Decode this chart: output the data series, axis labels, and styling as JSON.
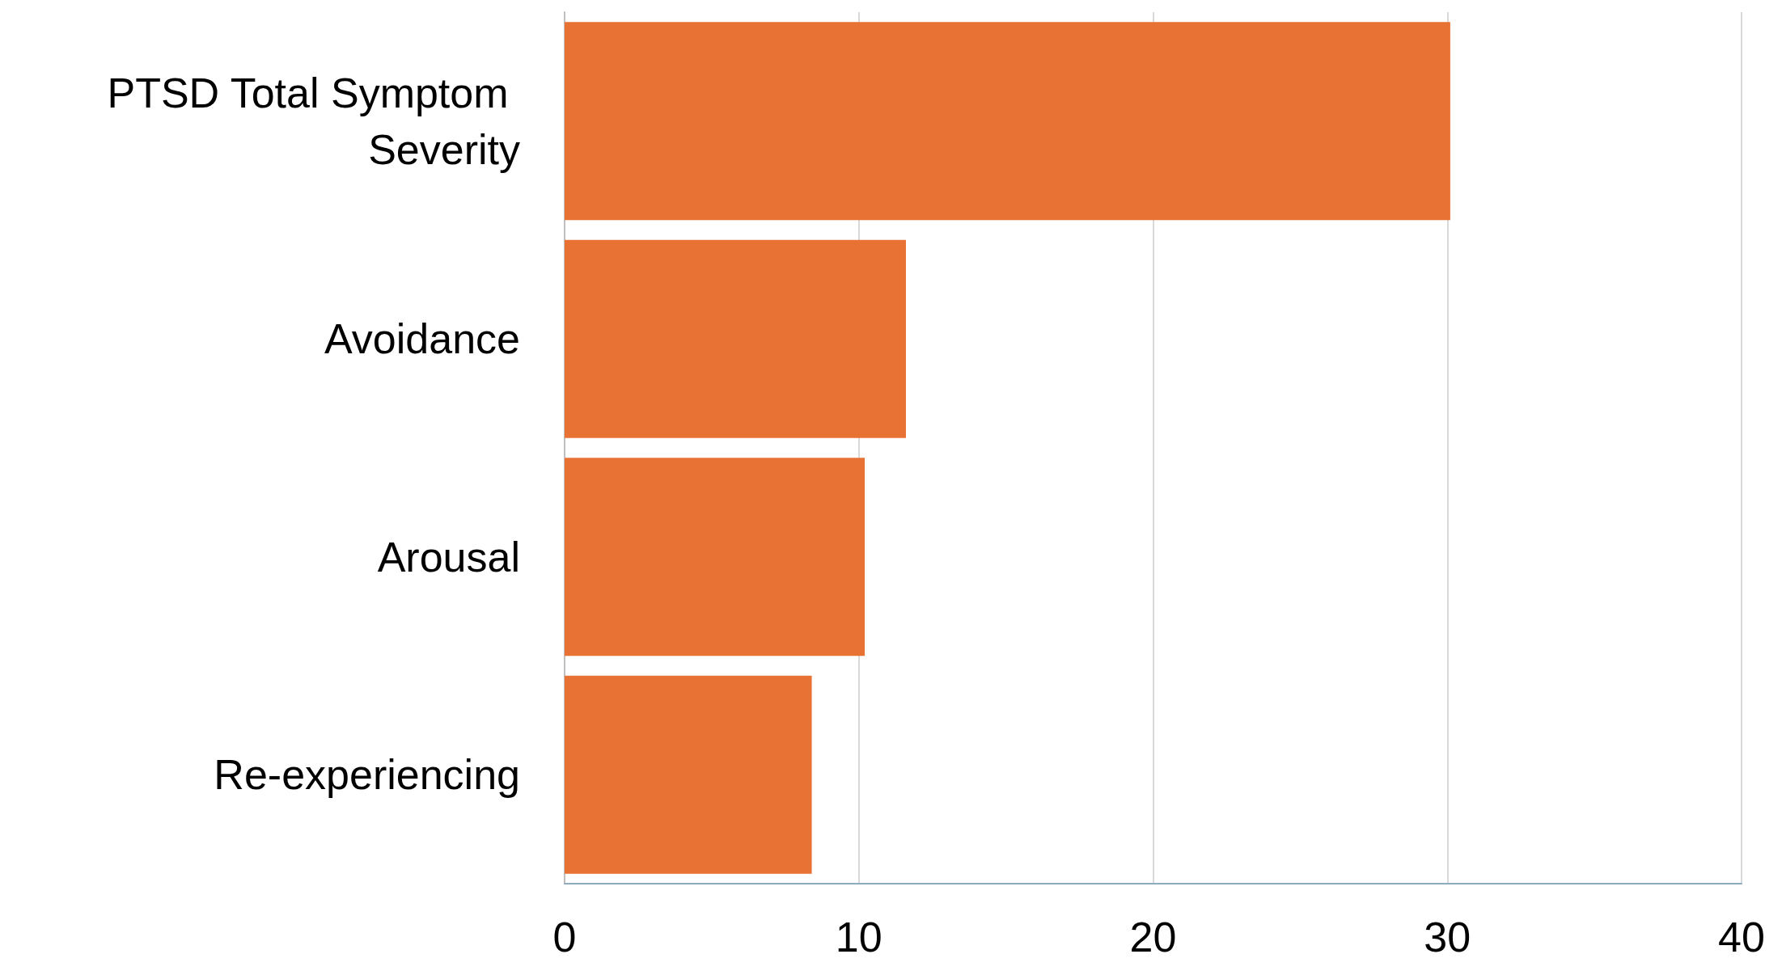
{
  "chart_data": {
    "type": "bar",
    "orientation": "horizontal",
    "categories": [
      "PTSD Total Symptom Severity",
      "Avoidance",
      "Arousal",
      "Re-experiencing"
    ],
    "values": [
      30.1,
      11.6,
      10.2,
      8.4
    ],
    "color": "#e87134",
    "xlim": [
      0,
      40
    ],
    "xticks": [
      0,
      10,
      20,
      30,
      40
    ],
    "grid": "x"
  }
}
